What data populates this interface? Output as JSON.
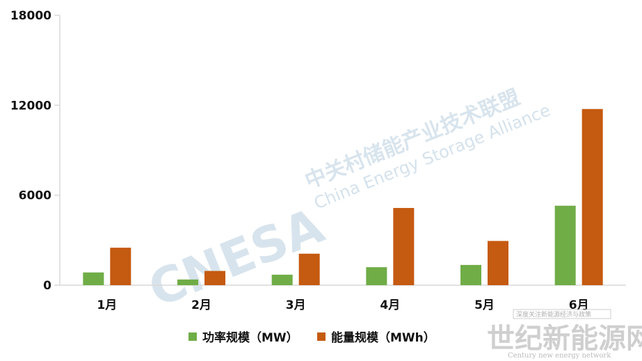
{
  "chart_data": {
    "type": "bar",
    "categories": [
      "1月",
      "2月",
      "3月",
      "4月",
      "5月",
      "6月"
    ],
    "series": [
      {
        "name": "功率规模（MW）",
        "color": "#70ad47",
        "values": [
          850,
          380,
          700,
          1200,
          1350,
          5300
        ]
      },
      {
        "name": "能量规模（MWh）",
        "color": "#c55a11",
        "values": [
          2500,
          950,
          2100,
          5150,
          2950,
          11750
        ]
      }
    ],
    "yticks": [
      0,
      6000,
      12000,
      18000
    ],
    "ylim": [
      0,
      18000
    ],
    "grid": false,
    "legend_position": "bottom"
  },
  "watermark": {
    "brand": "CNESA",
    "name_cn": "中关村储能产业技术联盟",
    "name_en": "China Energy Storage Alliance"
  },
  "corner_watermark": {
    "top_text": "深度关注新能源经济与政策",
    "main": "世纪新能源网",
    "sub": "Century new energy network"
  }
}
